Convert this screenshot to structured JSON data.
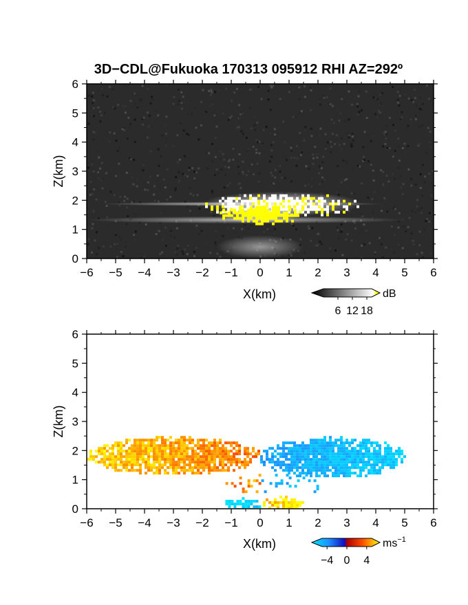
{
  "chart_data": [
    {
      "type": "heatmap",
      "title": "3D−CDL@Fukuoka 170313 095912 RHI AZ=292º",
      "xlabel": "X(km)",
      "ylabel": "Z(km)",
      "xlim": [
        -6,
        6
      ],
      "ylim": [
        0,
        6
      ],
      "x_ticks": [
        "−6",
        "−5",
        "−4",
        "−3",
        "−2",
        "−1",
        "0",
        "1",
        "2",
        "3",
        "4",
        "5",
        "6"
      ],
      "y_ticks": [
        "0",
        "1",
        "2",
        "3",
        "4",
        "5",
        "6"
      ],
      "colorbar": {
        "unit": "dB",
        "ticks": [
          "6",
          "12",
          "18"
        ],
        "range": [
          0,
          20
        ]
      },
      "features": [
        {
          "label": "",
          "x_range": [
            -6.0,
            5.0
          ],
          "z_range": [
            1.2,
            1.45
          ],
          "value": 10
        },
        {
          "label": "",
          "x_range": [
            -5.5,
            4.3
          ],
          "z_range": [
            1.8,
            1.95
          ],
          "value": 12
        },
        {
          "label": "",
          "x_range": [
            -2.0,
            3.5
          ],
          "z_range": [
            1.45,
            2.3
          ],
          "value": 15
        },
        {
          "label": "",
          "x_range": [
            -1.5,
            1.5
          ],
          "z_range": [
            1.2,
            1.9
          ],
          "value": 20
        },
        {
          "label": "",
          "x_range": [
            -1.5,
            1.5
          ],
          "z_range": [
            0.0,
            0.8
          ],
          "value": 8
        }
      ]
    },
    {
      "type": "heatmap",
      "xlabel": "X(km)",
      "ylabel": "Z(km)",
      "xlim": [
        -6,
        6
      ],
      "ylim": [
        0,
        6
      ],
      "x_ticks": [
        "−6",
        "−5",
        "−4",
        "−3",
        "−2",
        "−1",
        "0",
        "1",
        "2",
        "3",
        "4",
        "5",
        "6"
      ],
      "y_ticks": [
        "0",
        "1",
        "2",
        "3",
        "4",
        "5",
        "6"
      ],
      "colorbar": {
        "unit": "ms",
        "unit_exp": "−1",
        "ticks": [
          "−4",
          "0",
          "4"
        ],
        "range": [
          -5,
          5
        ]
      },
      "features": [
        {
          "label": "",
          "x_range": [
            -6.0,
            0.0
          ],
          "z_range": [
            1.2,
            2.5
          ],
          "value": 3
        },
        {
          "label": "",
          "x_range": [
            0.0,
            5.0
          ],
          "z_range": [
            1.1,
            2.5
          ],
          "value": -3
        },
        {
          "label": "",
          "x_range": [
            -1.3,
            0.0
          ],
          "z_range": [
            0.0,
            0.4
          ],
          "value": -4
        },
        {
          "label": "",
          "x_range": [
            0.0,
            1.5
          ],
          "z_range": [
            0.0,
            0.45
          ],
          "value": 4
        },
        {
          "label": "",
          "x_range": [
            -1.2,
            2.0
          ],
          "z_range": [
            0.6,
            1.2
          ],
          "value": 0
        }
      ]
    }
  ]
}
